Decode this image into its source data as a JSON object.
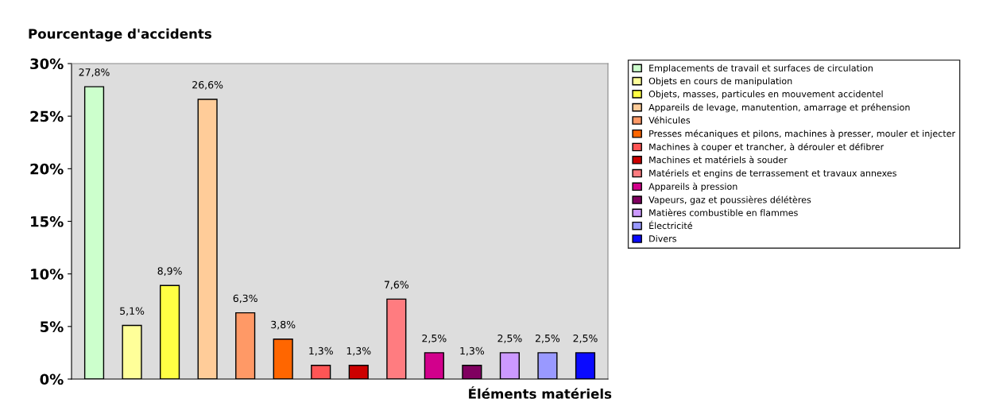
{
  "chart_data": {
    "type": "bar",
    "ylabel": "Pourcentage d'accidents",
    "xlabel": "Éléments matériels",
    "categories": [
      null,
      null,
      null,
      null,
      null,
      null,
      null,
      null,
      null,
      null,
      null,
      null,
      null,
      null
    ],
    "series": [
      {
        "name": "Emplacements de travail et surfaces de circulation",
        "color": "#ccffcc",
        "values": [
          27.8,
          null,
          null,
          null,
          null,
          null,
          null,
          null,
          null,
          null,
          null,
          null,
          null,
          null
        ],
        "value_labels": [
          "27,8%",
          null,
          null,
          null,
          null,
          null,
          null,
          null,
          null,
          null,
          null,
          null,
          null,
          null
        ]
      },
      {
        "name": "Objets en cours de manipulation",
        "color": "#ffff99",
        "values": [
          null,
          5.1,
          null,
          null,
          null,
          null,
          null,
          null,
          null,
          null,
          null,
          null,
          null,
          null
        ],
        "value_labels": [
          null,
          "5,1%",
          null,
          null,
          null,
          null,
          null,
          null,
          null,
          null,
          null,
          null,
          null,
          null
        ]
      },
      {
        "name": "Objets, masses, particules en mouvement accidentel",
        "color": "#ffff44",
        "values": [
          null,
          null,
          8.9,
          null,
          null,
          null,
          null,
          null,
          null,
          null,
          null,
          null,
          null,
          null
        ],
        "value_labels": [
          null,
          null,
          "8,9%",
          null,
          null,
          null,
          null,
          null,
          null,
          null,
          null,
          null,
          null,
          null
        ]
      },
      {
        "name": "Appareils de levage, manutention, amarrage et préhension",
        "color": "#ffcc99",
        "values": [
          null,
          null,
          null,
          26.6,
          null,
          null,
          null,
          null,
          null,
          null,
          null,
          null,
          null,
          null
        ],
        "value_labels": [
          null,
          null,
          null,
          "26,6%",
          null,
          null,
          null,
          null,
          null,
          null,
          null,
          null,
          null,
          null
        ]
      },
      {
        "name": "Véhicules",
        "color": "#ff9966",
        "values": [
          null,
          null,
          null,
          null,
          6.3,
          null,
          null,
          null,
          null,
          null,
          null,
          null,
          null,
          null
        ],
        "value_labels": [
          null,
          null,
          null,
          null,
          "6,3%",
          null,
          null,
          null,
          null,
          null,
          null,
          null,
          null,
          null
        ]
      },
      {
        "name": "Presses mécaniques et pilons, machines à presser, mouler et injecter",
        "color": "#ff6600",
        "values": [
          null,
          null,
          null,
          null,
          null,
          3.8,
          null,
          null,
          null,
          null,
          null,
          null,
          null,
          null
        ],
        "value_labels": [
          null,
          null,
          null,
          null,
          null,
          "3,8%",
          null,
          null,
          null,
          null,
          null,
          null,
          null,
          null
        ]
      },
      {
        "name": "Machines à couper et trancher, à dérouler et défibrer",
        "color": "#ff5555",
        "values": [
          null,
          null,
          null,
          null,
          null,
          null,
          1.3,
          null,
          null,
          null,
          null,
          null,
          null,
          null
        ],
        "value_labels": [
          null,
          null,
          null,
          null,
          null,
          null,
          "1,3%",
          null,
          null,
          null,
          null,
          null,
          null,
          null
        ]
      },
      {
        "name": "Machines et matériels à souder",
        "color": "#cc0000",
        "values": [
          null,
          null,
          null,
          null,
          null,
          null,
          null,
          1.3,
          null,
          null,
          null,
          null,
          null,
          null
        ],
        "value_labels": [
          null,
          null,
          null,
          null,
          null,
          null,
          null,
          "1,3%",
          null,
          null,
          null,
          null,
          null,
          null
        ]
      },
      {
        "name": "Matériels et engins de terrassement et travaux annexes",
        "color": "#ff7c80",
        "values": [
          null,
          null,
          null,
          null,
          null,
          null,
          null,
          null,
          7.6,
          null,
          null,
          null,
          null,
          null
        ],
        "value_labels": [
          null,
          null,
          null,
          null,
          null,
          null,
          null,
          null,
          "7,6%",
          null,
          null,
          null,
          null,
          null
        ]
      },
      {
        "name": "Appareils à pression",
        "color": "#d2008c",
        "values": [
          null,
          null,
          null,
          null,
          null,
          null,
          null,
          null,
          null,
          2.5,
          null,
          null,
          null,
          null
        ],
        "value_labels": [
          null,
          null,
          null,
          null,
          null,
          null,
          null,
          null,
          null,
          "2,5%",
          null,
          null,
          null,
          null
        ]
      },
      {
        "name": "Vapeurs, gaz et poussières délétères",
        "color": "#800060",
        "values": [
          null,
          null,
          null,
          null,
          null,
          null,
          null,
          null,
          null,
          null,
          1.3,
          null,
          null,
          null
        ],
        "value_labels": [
          null,
          null,
          null,
          null,
          null,
          null,
          null,
          null,
          null,
          null,
          "1,3%",
          null,
          null,
          null
        ]
      },
      {
        "name": "Matières combustible en flammes",
        "color": "#cc99ff",
        "values": [
          null,
          null,
          null,
          null,
          null,
          null,
          null,
          null,
          null,
          null,
          null,
          2.5,
          null,
          null
        ],
        "value_labels": [
          null,
          null,
          null,
          null,
          null,
          null,
          null,
          null,
          null,
          null,
          null,
          "2,5%",
          null,
          null
        ]
      },
      {
        "name": "Électricité",
        "color": "#9999ff",
        "values": [
          null,
          null,
          null,
          null,
          null,
          null,
          null,
          null,
          null,
          null,
          null,
          null,
          2.5,
          null
        ],
        "value_labels": [
          null,
          null,
          null,
          null,
          null,
          null,
          null,
          null,
          null,
          null,
          null,
          null,
          "2,5%",
          null
        ]
      },
      {
        "name": "Divers",
        "color": "#0a0aff",
        "values": [
          null,
          null,
          null,
          null,
          null,
          null,
          null,
          null,
          null,
          null,
          null,
          null,
          null,
          2.5
        ],
        "value_labels": [
          null,
          null,
          null,
          null,
          null,
          null,
          null,
          null,
          null,
          null,
          null,
          null,
          null,
          "2,5%"
        ]
      }
    ],
    "ylim": [
      0,
      30
    ],
    "yticks": [
      {
        "value": 0,
        "label": "0%"
      },
      {
        "value": 5,
        "label": "5%"
      },
      {
        "value": 10,
        "label": "10%"
      },
      {
        "value": 15,
        "label": "15%"
      },
      {
        "value": 20,
        "label": "20%"
      },
      {
        "value": 25,
        "label": "25%"
      },
      {
        "value": 30,
        "label": "30%"
      }
    ],
    "grid": false,
    "legend": "right"
  }
}
